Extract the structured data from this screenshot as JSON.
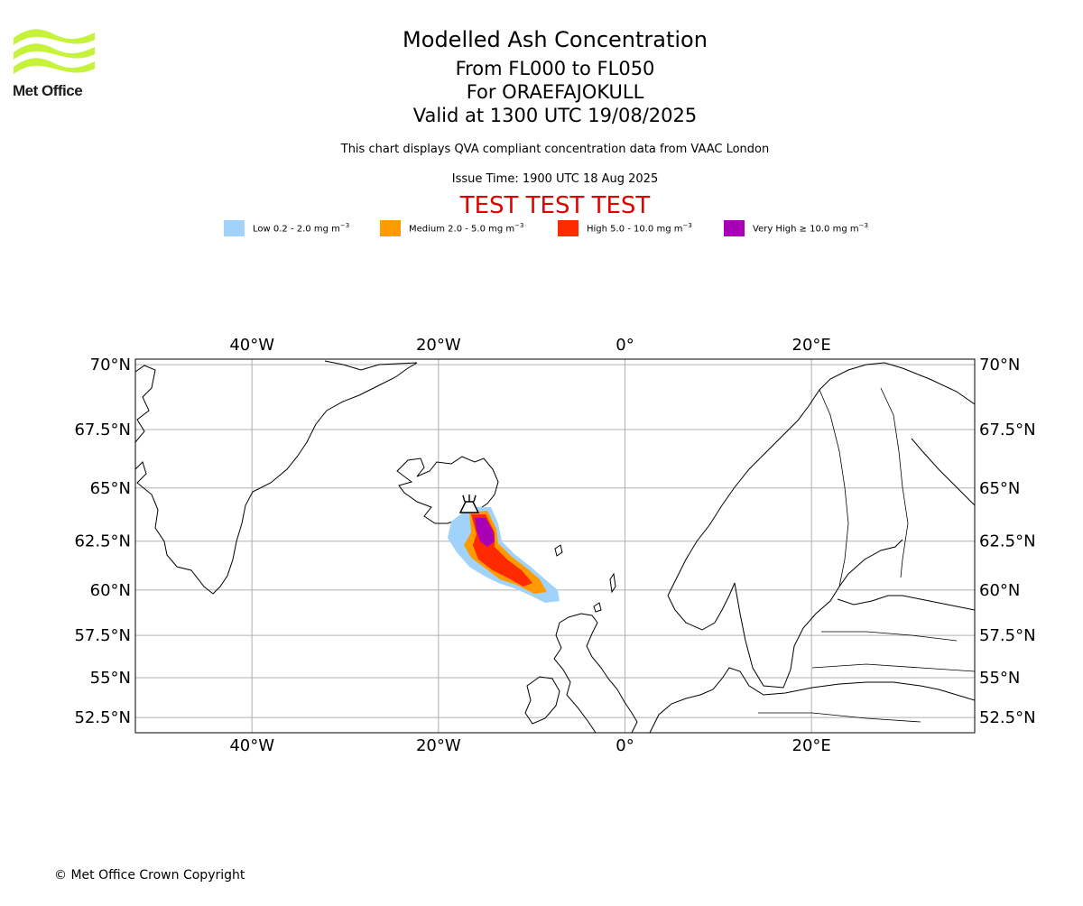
{
  "logo": {
    "text": "Met Office"
  },
  "header": {
    "title": "Modelled Ash Concentration",
    "levels": "From FL000 to FL050",
    "volcano": "For ORAEFAJOKULL",
    "valid": "Valid at 1300 UTC 19/08/2025",
    "subtitle": "This chart displays QVA compliant concentration data from VAAC London",
    "issue_time": "Issue Time: 1900 UTC 18 Aug 2025",
    "test_banner": "TEST TEST TEST"
  },
  "legend": [
    {
      "label": "Low 0.2 - 2.0 mg m",
      "unit_exp": "−3",
      "color": "#a0d2fa"
    },
    {
      "label": "Medium 2.0 - 5.0 mg m",
      "unit_exp": "−3",
      "color": "#ff9b00"
    },
    {
      "label": "High 5.0 - 10.0 mg m",
      "unit_exp": "−3",
      "color": "#ff2a00"
    },
    {
      "label": "Very High  ≥  10.0 mg m",
      "unit_exp": "−3",
      "color": "#a800b4"
    }
  ],
  "map": {
    "lon_range": [
      -52.5,
      37.5
    ],
    "lat_range": [
      51.5,
      70.2
    ],
    "lon_ticks": [
      {
        "value": -40,
        "label": "40°W"
      },
      {
        "value": -20,
        "label": "20°W"
      },
      {
        "value": 0,
        "label": "0°"
      },
      {
        "value": 20,
        "label": "20°E"
      }
    ],
    "lat_ticks": [
      {
        "value": 70,
        "label": "70°N"
      },
      {
        "value": 67.5,
        "label": "67.5°N"
      },
      {
        "value": 65,
        "label": "65°N"
      },
      {
        "value": 62.5,
        "label": "62.5°N"
      },
      {
        "value": 60,
        "label": "60°N"
      },
      {
        "value": 57.5,
        "label": "57.5°N"
      },
      {
        "value": 55,
        "label": "55°N"
      },
      {
        "value": 52.5,
        "label": "52.5°N"
      }
    ],
    "volcano_location": {
      "lon": -16.65,
      "lat": 64.0
    },
    "grid_color": "#b0b0b0",
    "coast_color": "#000000"
  },
  "footer": {
    "copyright": "© Met Office Crown Copyright"
  }
}
